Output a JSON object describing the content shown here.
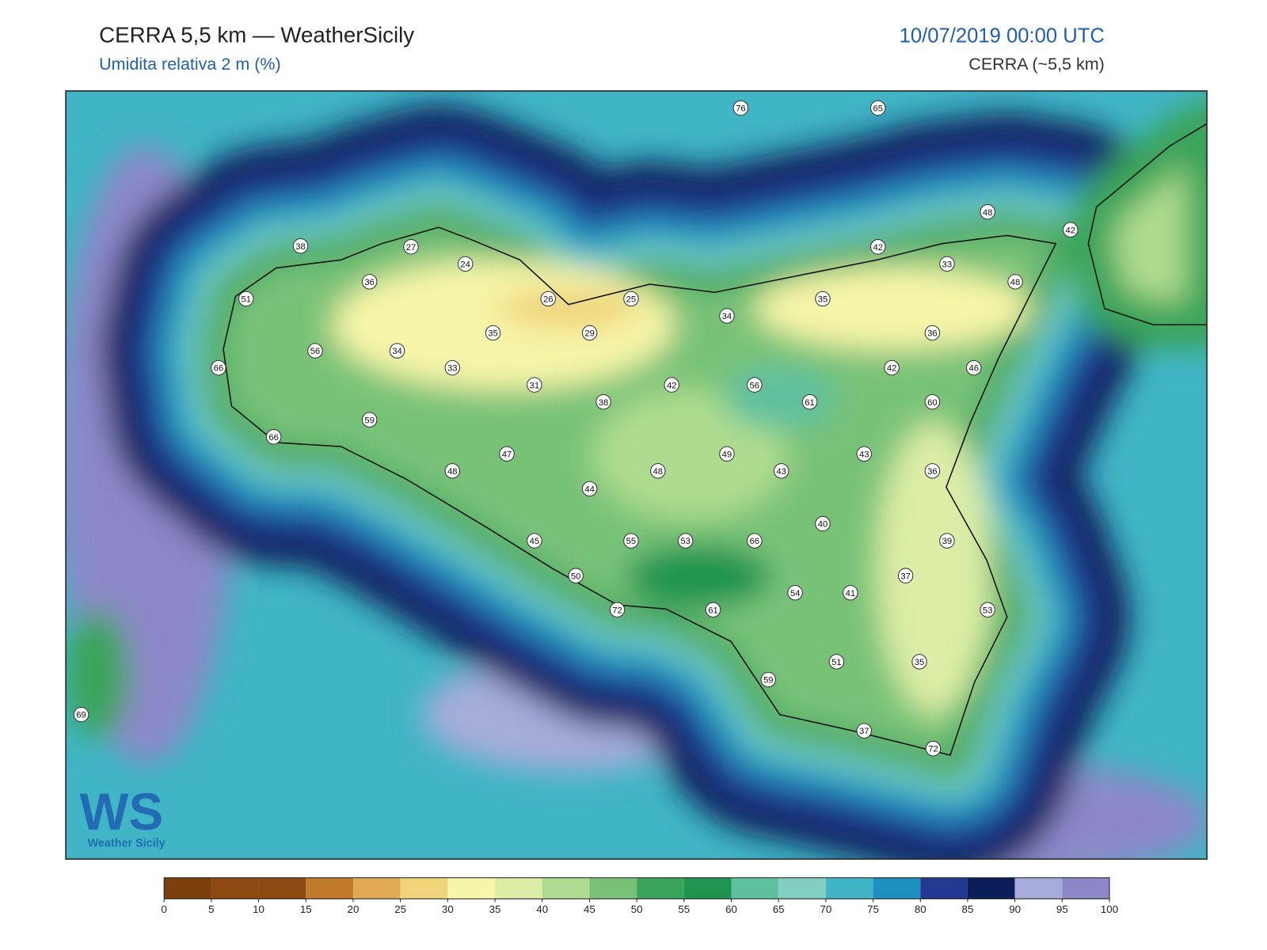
{
  "header": {
    "title": "CERRA 5,5 km — WeatherSicily",
    "subtitle": "Umidita relativa 2 m (%)",
    "date": "10/07/2019 00:00 UTC",
    "source": "CERRA (~5,5 km)"
  },
  "map": {
    "stations": [
      76,
      65,
      48,
      42,
      38,
      27,
      24,
      42,
      33,
      36,
      48,
      51,
      26,
      25,
      35,
      34,
      35,
      29,
      36,
      56,
      34,
      66,
      33,
      42,
      46,
      31,
      42,
      56,
      38,
      61,
      60,
      59,
      66,
      47,
      49,
      43,
      48,
      48,
      43,
      36,
      44,
      40,
      45,
      55,
      53,
      66,
      39,
      50,
      37,
      54,
      41,
      72,
      61,
      53,
      51,
      35,
      59,
      69,
      37,
      72
    ]
  },
  "logo": {
    "mark": "WS",
    "text": "Weather Sicily"
  },
  "colorbar": {
    "ticks": [
      0,
      5,
      10,
      15,
      20,
      25,
      30,
      35,
      40,
      45,
      50,
      55,
      60,
      65,
      70,
      75,
      80,
      85,
      90,
      95,
      100
    ],
    "colors": [
      "#7a3f0a",
      "#8c4a10",
      "#8c4a10",
      "#c07a2a",
      "#e0aa55",
      "#f0d47a",
      "#f7f5a8",
      "#dceda5",
      "#aedc8e",
      "#78c278",
      "#3aa45a",
      "#1e9450",
      "#5fc09e",
      "#80cfc0",
      "#40b5c5",
      "#1e90c0",
      "#243a90",
      "#0c1e58",
      "#a5acda",
      "#8c88c8"
    ]
  }
}
